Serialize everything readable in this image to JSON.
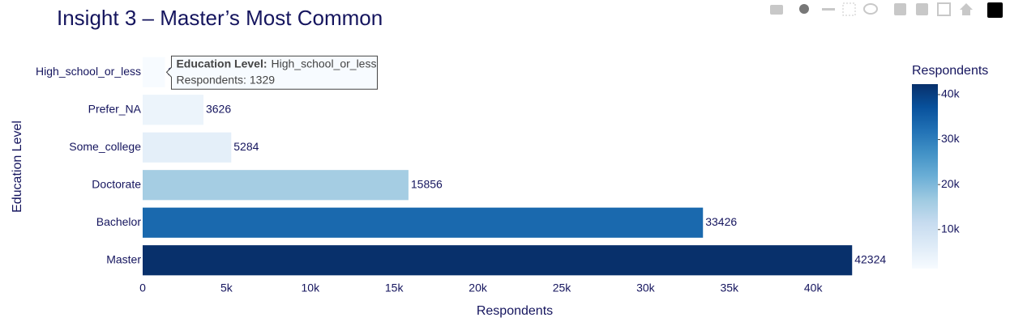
{
  "chart_data": {
    "type": "hbar",
    "title": "Insight 3 – Master’s Most Common",
    "xlabel": "Respondents",
    "ylabel": "Education Level",
    "categories": [
      "Master",
      "Bachelor",
      "Doctorate",
      "Some_college",
      "Prefer_NA",
      "High_school_or_less"
    ],
    "values": [
      42324,
      33426,
      15856,
      5284,
      3626,
      1329
    ],
    "xlim": [
      0,
      44440
    ],
    "xticks": [
      0,
      {
        "value": 5000,
        "label": "5k"
      },
      {
        "value": 10000,
        "label": "10k"
      },
      {
        "value": 15000,
        "label": "15k"
      },
      {
        "value": 20000,
        "label": "20k"
      },
      {
        "value": 25000,
        "label": "25k"
      },
      {
        "value": 30000,
        "label": "30k"
      },
      {
        "value": 35000,
        "label": "35k"
      },
      {
        "value": 40000,
        "label": "40k"
      }
    ],
    "colorscale": [
      "#f7fbff",
      "#deebf7",
      "#c6dbef",
      "#9ecae1",
      "#6baed6",
      "#4292c6",
      "#2171b5",
      "#08519c",
      "#08306b"
    ],
    "colorbar": {
      "title": "Respondents",
      "range": [
        1329,
        42324
      ],
      "ticks": [
        {
          "value": 10000,
          "label": "10k"
        },
        {
          "value": 20000,
          "label": "20k"
        },
        {
          "value": 30000,
          "label": "30k"
        },
        {
          "value": 40000,
          "label": "40k"
        }
      ]
    },
    "tooltip": {
      "category_label": "Education Level:",
      "category": "High_school_or_less",
      "value_label": "Respondents:",
      "index": 5
    }
  }
}
